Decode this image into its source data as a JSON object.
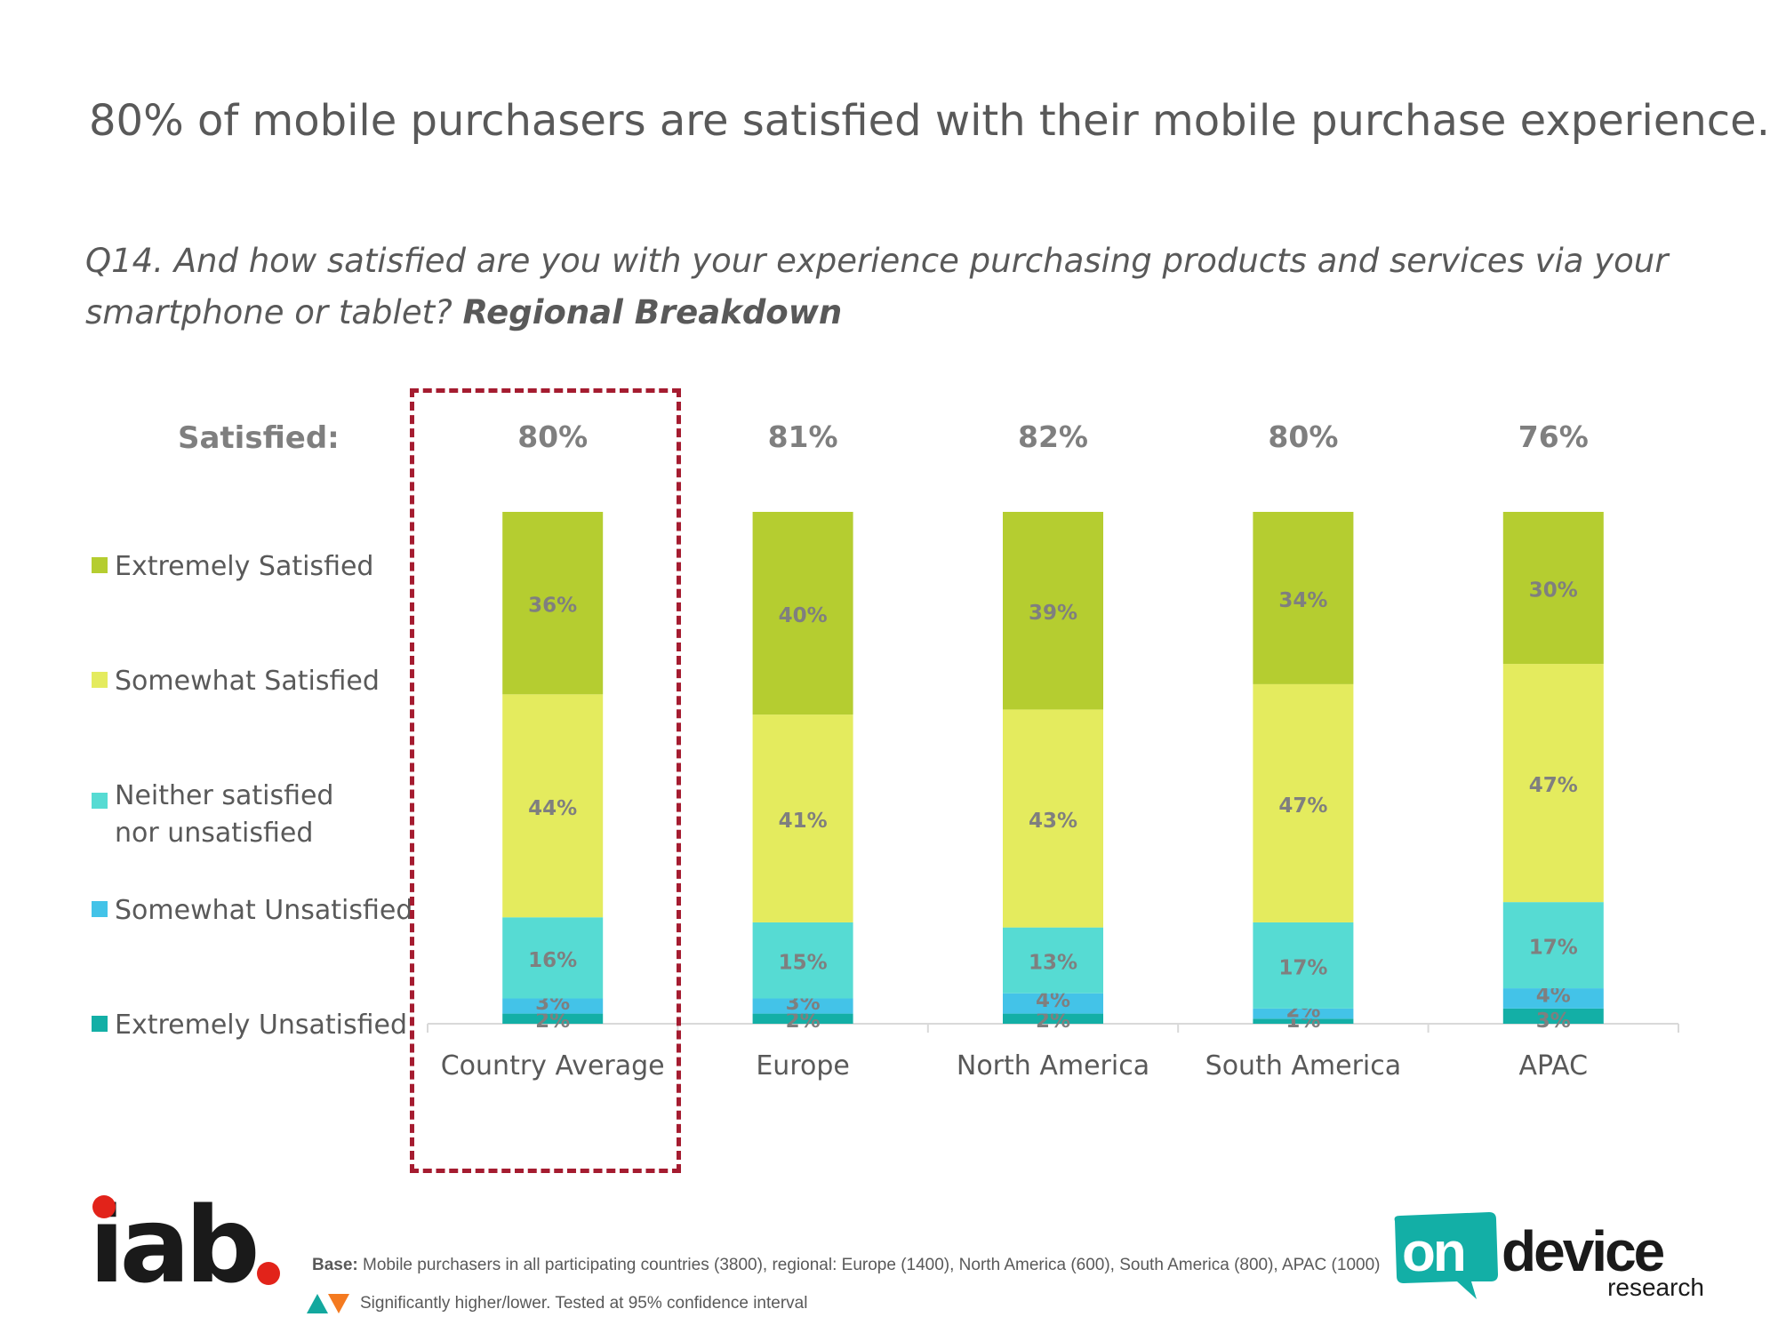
{
  "header": {
    "title": "80% of mobile purchasers are satisfied with their mobile purchase experience.",
    "question_main": " Q14. And how satisfied are you with your experience purchasing products and services via your smartphone or tablet? ",
    "question_bold": "Regional Breakdown"
  },
  "satisfied_label": "Satisfied:",
  "legend": [
    {
      "label": "Extremely Satisfied",
      "color": "#b5cd30"
    },
    {
      "label": "Somewhat Satisfied",
      "color": "#e4eb5e"
    },
    {
      "label": "Neither satisfied nor unsatisfied",
      "color": "#56dbd3"
    },
    {
      "label": "Somewhat Unsatisfied",
      "color": "#43c3e8"
    },
    {
      "label": "Extremely Unsatisfied",
      "color": "#13afa6"
    }
  ],
  "chart_data": {
    "type": "bar",
    "stacked": true,
    "title": "Q14. And how satisfied are you with your experience purchasing products and services via your smartphone or tablet? Regional Breakdown",
    "categories": [
      "Country Average",
      "Europe",
      "North America",
      "South America",
      "APAC"
    ],
    "satisfied_totals": [
      "80%",
      "81%",
      "82%",
      "80%",
      "76%"
    ],
    "series": [
      {
        "name": "Extremely Unsatisfied",
        "color": "#13afa6",
        "values": [
          2,
          2,
          2,
          1,
          3
        ]
      },
      {
        "name": "Somewhat Unsatisfied",
        "color": "#43c3e8",
        "values": [
          3,
          3,
          4,
          2,
          4
        ]
      },
      {
        "name": "Neither satisfied nor unsatisfied",
        "color": "#56dbd3",
        "values": [
          16,
          15,
          13,
          17,
          17
        ]
      },
      {
        "name": "Somewhat Satisfied",
        "color": "#e4eb5e",
        "values": [
          44,
          41,
          43,
          47,
          47
        ]
      },
      {
        "name": "Extremely Satisfied",
        "color": "#b5cd30",
        "values": [
          36,
          40,
          39,
          34,
          30
        ]
      }
    ],
    "ylim": [
      0,
      101
    ],
    "highlight": "Country Average",
    "label_color": "#7f7f7f"
  },
  "footer": {
    "base_label": "Base:",
    "base_text": " Mobile purchasers in all participating countries (3800), regional: Europe (1400), North America (600), South America (800), APAC (1000)",
    "sig_text": "Significantly higher/lower. Tested at 95% confidence interval",
    "iab_logo_text": "iab",
    "ondevice_on": "on",
    "ondevice_device": "device",
    "ondevice_research": "research"
  }
}
